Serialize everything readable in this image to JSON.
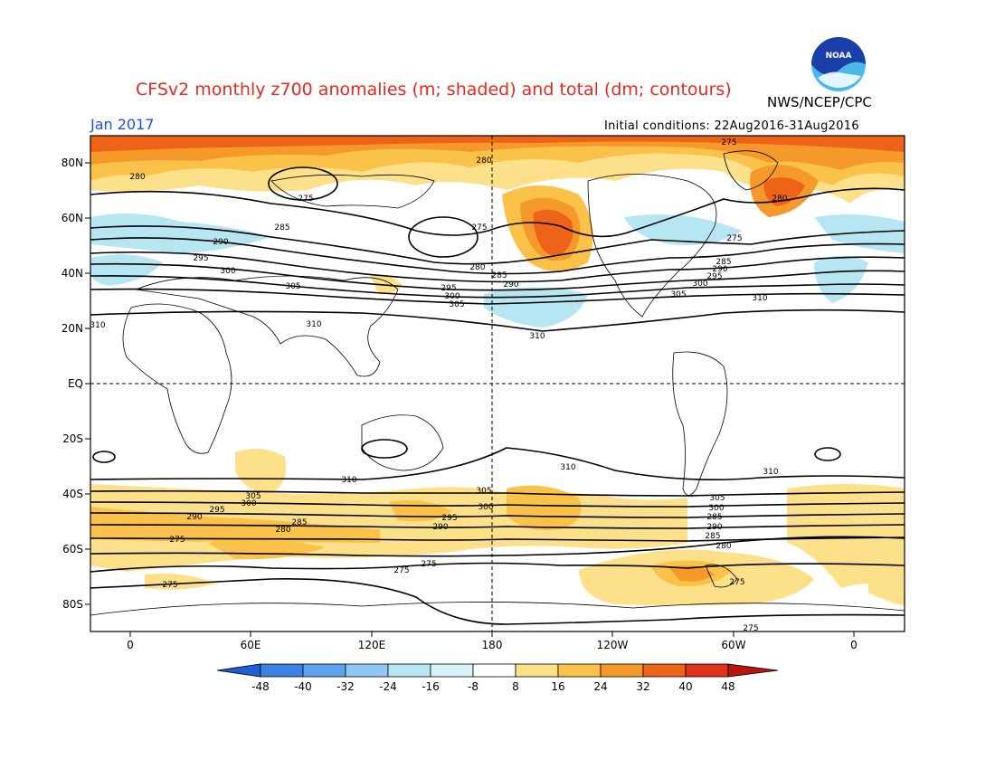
{
  "header": {
    "title": "CFSv2 monthly z700 anomalies (m; shaded) and total (dm; contours)",
    "agency": "NWS/NCEP/CPC",
    "month": "Jan 2017",
    "initial_conditions": "Initial conditions: 22Aug2016-31Aug2016",
    "logo_text": "NOAA"
  },
  "map": {
    "lat_labels": [
      "80N",
      "60N",
      "40N",
      "20N",
      "EQ",
      "20S",
      "40S",
      "60S",
      "80S"
    ],
    "lon_labels": [
      "0",
      "60E",
      "120E",
      "180",
      "120W",
      "60W",
      "0"
    ],
    "contour_labels": [
      "275",
      "280",
      "285",
      "290",
      "295",
      "300",
      "305",
      "310"
    ]
  },
  "colorbar": {
    "ticks": [
      "-48",
      "-40",
      "-32",
      "-24",
      "-16",
      "-8",
      "8",
      "16",
      "24",
      "32",
      "40",
      "48"
    ],
    "colors": [
      "#1e5fd6",
      "#3c82e4",
      "#5fa3ec",
      "#8fc8f2",
      "#b6e6f2",
      "#ffffff",
      "#fde08a",
      "#fbc24a",
      "#f59a2a",
      "#ef6318",
      "#e3311a",
      "#b8140e"
    ]
  },
  "colors": {
    "title": "#e8281e",
    "month": "#1f4fe0",
    "contour": "#000000"
  }
}
